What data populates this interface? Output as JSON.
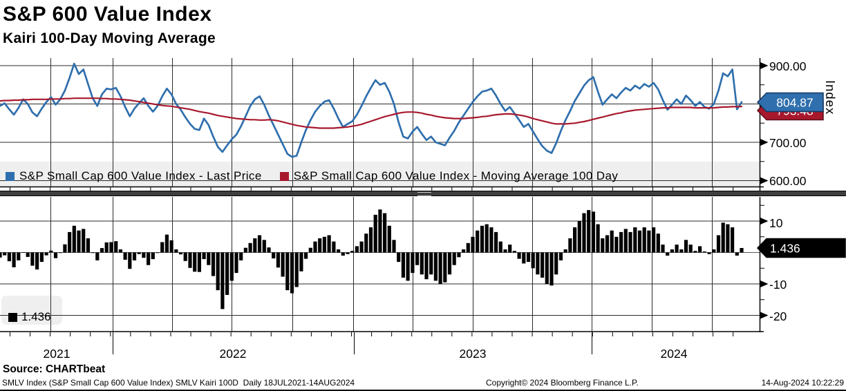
{
  "header": {
    "title": "S&P 600 Value Index",
    "subtitle": "Kairi 100-Day Moving Average"
  },
  "top_panel": {
    "legend": [
      {
        "label": "S&P Small Cap 600 Value Index - Last Price",
        "color": "#2f6fad"
      },
      {
        "label": "S&P Small Cap 600 Value Index - Moving Average 100 Day",
        "color": "#a8182d"
      }
    ],
    "axis_title": "Index",
    "tick_labels": [
      "900.00",
      "700.00",
      "600.00"
    ],
    "price_badge": "804.87",
    "ma_badge": "793.48"
  },
  "bottom_panel": {
    "tick_labels": [
      "10",
      "-10",
      "-20"
    ],
    "value_badge": "1.436",
    "legend_label": "1.436"
  },
  "x_axis": {
    "year_labels": [
      "2021",
      "2022",
      "2023",
      "2024"
    ]
  },
  "source_line": "Source: CHARTbeat",
  "footer": {
    "left": "SMLV Index (S&P Small Cap 600 Value Index) SMLV Kairi 100D  Daily 18JUL2021-14AUG2024",
    "center": "Copyright© 2024 Bloomberg Finance L.P.",
    "right": "14-Aug-2024 10:22:29"
  },
  "colors": {
    "price_blue": "#2f6fad",
    "price_blue_border": "#14365e",
    "ma_red": "#a8182d",
    "ma_red_border": "#5e0c18",
    "histogram": "#000000",
    "legend_band": "#efefef",
    "grid": "#2a2a2a",
    "separator": "#3f3f3f"
  },
  "chart_data": [
    {
      "type": "line",
      "title": "S&P 600 Value Index",
      "x_start": "18JUL2021",
      "x_end": "14AUG2024",
      "sampling": "weekly",
      "ylim": [
        585,
        918
      ],
      "yticks": [
        600,
        700,
        800,
        900
      ],
      "grid": true,
      "legend_position": "bottom",
      "series": [
        {
          "name": "S&P Small Cap 600 Value Index - Last Price",
          "color": "#2f6fad",
          "last": 804.87,
          "values": [
            795,
            802,
            786,
            772,
            790,
            812,
            800,
            778,
            768,
            788,
            805,
            818,
            798,
            812,
            835,
            868,
            905,
            878,
            890,
            852,
            815,
            795,
            825,
            840,
            838,
            842,
            820,
            792,
            768,
            788,
            802,
            815,
            795,
            780,
            795,
            820,
            840,
            825,
            800,
            785,
            765,
            748,
            735,
            732,
            762,
            745,
            715,
            688,
            675,
            692,
            708,
            720,
            742,
            768,
            795,
            812,
            820,
            798,
            770,
            745,
            720,
            695,
            670,
            662,
            665,
            700,
            732,
            758,
            780,
            795,
            806,
            810,
            788,
            762,
            740,
            748,
            755,
            772,
            795,
            820,
            842,
            862,
            850,
            855,
            832,
            800,
            752,
            715,
            710,
            728,
            740,
            722,
            706,
            715,
            700,
            696,
            692,
            712,
            730,
            752,
            770,
            788,
            805,
            820,
            832,
            835,
            840,
            822,
            800,
            782,
            792,
            775,
            758,
            740,
            748,
            728,
            708,
            690,
            678,
            672,
            698,
            730,
            758,
            782,
            808,
            828,
            848,
            862,
            870,
            832,
            798,
            812,
            825,
            815,
            830,
            842,
            835,
            848,
            840,
            852,
            845,
            855,
            838,
            810,
            785,
            798,
            812,
            800,
            822,
            810,
            795,
            805,
            792,
            788,
            800,
            835,
            880,
            872,
            890,
            786,
            804.87
          ]
        },
        {
          "name": "S&P Small Cap 600 Value Index - Moving Average 100 Day",
          "color": "#a8182d",
          "last": 793.48,
          "values": [
            808,
            809,
            809,
            810,
            810,
            811,
            811,
            812,
            812,
            812,
            812,
            813,
            813,
            813,
            814,
            814,
            815,
            815,
            815,
            815,
            815,
            815,
            814,
            814,
            813,
            813,
            812,
            811,
            810,
            808,
            806,
            804,
            802,
            800,
            798,
            796,
            795,
            794,
            792,
            790,
            788,
            786,
            783,
            780,
            778,
            776,
            773,
            770,
            768,
            766,
            764,
            762,
            761,
            760,
            759,
            759,
            758,
            758,
            759,
            758,
            756,
            753,
            750,
            747,
            744,
            742,
            740,
            739,
            738,
            737,
            737,
            737,
            737,
            738,
            739,
            740,
            742,
            744,
            747,
            751,
            755,
            759,
            763,
            767,
            770,
            773,
            776,
            778,
            779,
            779,
            778,
            776,
            773,
            771,
            768,
            766,
            764,
            763,
            762,
            762,
            762,
            763,
            764,
            765,
            767,
            768,
            770,
            772,
            773,
            774,
            774,
            773,
            771,
            769,
            766,
            762,
            759,
            756,
            753,
            750,
            748,
            748,
            748,
            749,
            750,
            752,
            754,
            757,
            760,
            763,
            766,
            769,
            772,
            775,
            777,
            780,
            782,
            784,
            785,
            786,
            787,
            788,
            789,
            790,
            790,
            791,
            791,
            791,
            791,
            791,
            790,
            790,
            790,
            790,
            790,
            791,
            792,
            792,
            793,
            793,
            793.48
          ]
        }
      ]
    },
    {
      "type": "bar",
      "title": "Kairi 100-Day Moving Average (%)",
      "x_start": "18JUL2021",
      "x_end": "14AUG2024",
      "sampling": "weekly",
      "ylim": [
        -25,
        17.5
      ],
      "yticks": [
        10,
        0,
        -10,
        -20
      ],
      "color": "#000000",
      "last": 1.436,
      "values": [
        -1.6,
        -0.9,
        -2.8,
        -4.7,
        -2.5,
        0.1,
        -1.4,
        -4.2,
        -5.4,
        -3.0,
        -0.9,
        0.6,
        -1.8,
        -0.1,
        2.6,
        6.5,
        8.5,
        7.0,
        7.5,
        4.5,
        0.0,
        -2.5,
        1.4,
        3.2,
        3.3,
        3.6,
        1.0,
        -2.3,
        -5.2,
        -2.5,
        -0.5,
        -1.7,
        -4.0,
        -2.1,
        0.0,
        3.3,
        5.7,
        3.9,
        1.0,
        -0.6,
        -2.7,
        -4.9,
        -6.1,
        -6.2,
        -2.1,
        -4.0,
        -7.5,
        -12.0,
        -18.0,
        -13.5,
        -9.0,
        -6.5,
        -2.5,
        1.5,
        3.0,
        4.5,
        5.5,
        4.0,
        1.6,
        -1.9,
        -4.8,
        -7.7,
        -12.0,
        -13.0,
        -11.0,
        -6.0,
        -2.0,
        1.5,
        3.5,
        4.5,
        5.0,
        5.5,
        3.5,
        1.0,
        -1.0,
        -0.5,
        0.5,
        2.0,
        3.5,
        6.0,
        8.0,
        12.0,
        13.7,
        12.5,
        8.5,
        4.0,
        -3.0,
        -8.0,
        -9.0,
        -6.5,
        -4.0,
        -7.0,
        -8.5,
        -7.0,
        -9.0,
        -10.0,
        -9.5,
        -7.0,
        -4.0,
        -1.5,
        1.0,
        3.0,
        5.0,
        7.0,
        8.5,
        9.0,
        8.0,
        6.5,
        3.5,
        1.0,
        2.5,
        0.5,
        -2.0,
        -3.5,
        -3.0,
        -5.0,
        -7.0,
        -8.0,
        -10.0,
        -10.5,
        -7.0,
        -2.5,
        1.0,
        4.5,
        8.0,
        10.0,
        12.5,
        13.5,
        13.0,
        9.0,
        4.5,
        5.5,
        7.0,
        5.0,
        6.5,
        7.5,
        6.5,
        8.0,
        7.0,
        8.0,
        7.0,
        8.0,
        6.0,
        2.5,
        -1.0,
        1.0,
        2.5,
        1.0,
        4.0,
        2.5,
        0.5,
        2.0,
        0.3,
        -0.5,
        1.0,
        5.5,
        9.5,
        9.0,
        8.0,
        -1.0,
        1.436
      ]
    }
  ]
}
